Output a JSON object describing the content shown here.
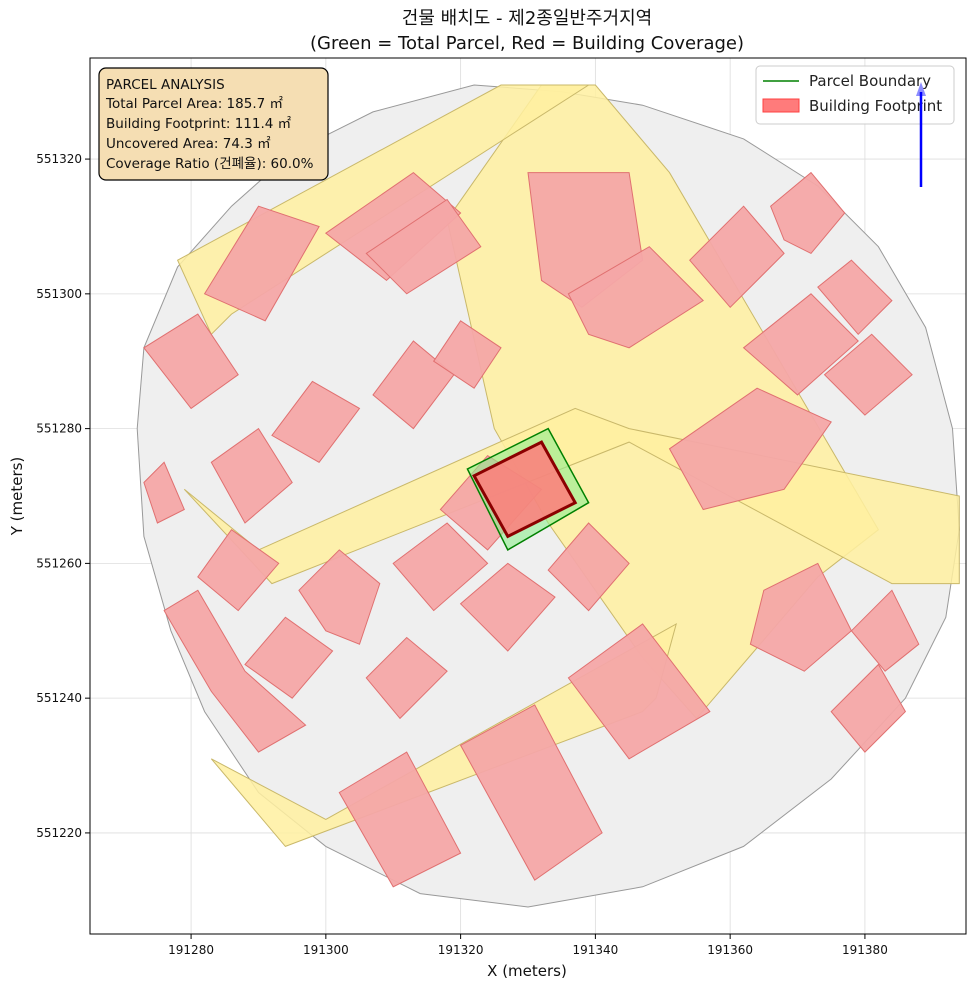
{
  "colors": {
    "parcel_boundary": "#008000",
    "parcel_fill": "#90ee90",
    "building_footprint": "#ff7b7b",
    "building_edge": "#8b0000",
    "road_fill": "#fff0a0",
    "neighbor_parcel_fill": "#efefef",
    "neighbor_building_fill": "#f4a6a6",
    "annotation_box": "#f5deb3",
    "north_arrow": "#0000ff"
  },
  "chart_data": {
    "type": "map",
    "title_line1": "건물 배치도 - 제2종일반주거지역",
    "title_line2": "(Green = Total Parcel, Red = Building Coverage)",
    "xlabel": "X (meters)",
    "ylabel": "Y (meters)",
    "xlim": [
      191265,
      191395
    ],
    "ylim": [
      551205,
      551335
    ],
    "xticks": [
      191280,
      191300,
      191320,
      191340,
      191360,
      191380
    ],
    "yticks": [
      551220,
      551240,
      551260,
      551280,
      551300,
      551320
    ],
    "grid": true,
    "legend_position": "top-right",
    "legend": [
      {
        "label": "Parcel Boundary",
        "kind": "line"
      },
      {
        "label": "Building Footprint",
        "kind": "patch"
      }
    ],
    "annotation": {
      "position": "top-left",
      "lines": [
        "PARCEL ANALYSIS",
        "Total Parcel Area: 185.7 ㎡",
        "Building Footprint: 111.4 ㎡",
        "Uncovered Area: 74.3 ㎡",
        "Coverage Ratio (건폐율): 60.0%"
      ]
    },
    "metrics": {
      "total_parcel_area_m2": 185.7,
      "building_footprint_m2": 111.4,
      "uncovered_area_m2": 74.3,
      "coverage_ratio_percent": 60.0
    },
    "subject_parcel": [
      [
        191321,
        551274
      ],
      [
        191333,
        551280
      ],
      [
        191339,
        551269
      ],
      [
        191327,
        551262
      ]
    ],
    "subject_building": [
      [
        191322,
        551273
      ],
      [
        191332,
        551278
      ],
      [
        191337,
        551269
      ],
      [
        191327,
        551264
      ]
    ],
    "site_boundary": [
      [
        191322,
        551331
      ],
      [
        191335,
        551330
      ],
      [
        191347,
        551328
      ],
      [
        191362,
        551323
      ],
      [
        191373,
        551316
      ],
      [
        191382,
        551307
      ],
      [
        191389,
        551295
      ],
      [
        191393,
        551280
      ],
      [
        191394,
        551265
      ],
      [
        191392,
        551252
      ],
      [
        191386,
        551240
      ],
      [
        191375,
        551228
      ],
      [
        191362,
        551218
      ],
      [
        191347,
        551212
      ],
      [
        191330,
        551209
      ],
      [
        191314,
        551211
      ],
      [
        191300,
        551218
      ],
      [
        191290,
        551226
      ],
      [
        191282,
        551238
      ],
      [
        191277,
        551250
      ],
      [
        191273,
        551264
      ],
      [
        191272,
        551280
      ],
      [
        191273,
        551292
      ],
      [
        191278,
        551304
      ],
      [
        191286,
        551313
      ],
      [
        191295,
        551321
      ],
      [
        191307,
        551327
      ]
    ],
    "roads": [
      [
        [
          191318,
          551311
        ],
        [
          191332,
          551331
        ],
        [
          191340,
          551331
        ],
        [
          191351,
          551318
        ],
        [
          191382,
          551265
        ],
        [
          191373,
          551258
        ],
        [
          191355,
          551237
        ],
        [
          191347,
          551246
        ],
        [
          191333,
          551266
        ],
        [
          191325,
          551280
        ]
      ],
      [
        [
          191278,
          551305
        ],
        [
          191326,
          551331
        ],
        [
          191339,
          551331
        ],
        [
          191286,
          551297
        ],
        [
          191283,
          551294
        ]
      ],
      [
        [
          191279,
          551271
        ],
        [
          191290,
          551262
        ],
        [
          191337,
          551283
        ],
        [
          191345,
          551280
        ],
        [
          191394,
          551270
        ],
        [
          191394,
          551257
        ],
        [
          191384,
          551257
        ],
        [
          191345,
          551278
        ],
        [
          191292,
          551257
        ]
      ],
      [
        [
          191283,
          551231
        ],
        [
          191300,
          551222
        ],
        [
          191352,
          551251
        ],
        [
          191349,
          551240
        ],
        [
          191347,
          551238
        ],
        [
          191294,
          551218
        ]
      ]
    ],
    "neighbor_buildings": [
      [
        [
          191330,
          551318
        ],
        [
          191345,
          551318
        ],
        [
          191347,
          551305
        ],
        [
          191338,
          551298
        ],
        [
          191332,
          551302
        ]
      ],
      [
        [
          191354,
          551305
        ],
        [
          191362,
          551313
        ],
        [
          191368,
          551306
        ],
        [
          191360,
          551298
        ]
      ],
      [
        [
          191366,
          551313
        ],
        [
          191372,
          551318
        ],
        [
          191377,
          551312
        ],
        [
          191372,
          551306
        ],
        [
          191368,
          551308
        ]
      ],
      [
        [
          191373,
          551301
        ],
        [
          191378,
          551305
        ],
        [
          191384,
          551299
        ],
        [
          191379,
          551294
        ]
      ],
      [
        [
          191336,
          551300
        ],
        [
          191348,
          551307
        ],
        [
          191356,
          551299
        ],
        [
          191345,
          551292
        ],
        [
          191339,
          551294
        ]
      ],
      [
        [
          191362,
          551292
        ],
        [
          191372,
          551300
        ],
        [
          191379,
          551293
        ],
        [
          191370,
          551285
        ]
      ],
      [
        [
          191374,
          551288
        ],
        [
          191381,
          551294
        ],
        [
          191387,
          551288
        ],
        [
          191380,
          551282
        ]
      ],
      [
        [
          191351,
          551277
        ],
        [
          191364,
          551286
        ],
        [
          191375,
          551281
        ],
        [
          191368,
          551271
        ],
        [
          191356,
          551268
        ]
      ],
      [
        [
          191365,
          551256
        ],
        [
          191373,
          551260
        ],
        [
          191378,
          551250
        ],
        [
          191371,
          551244
        ],
        [
          191363,
          551248
        ]
      ],
      [
        [
          191378,
          551250
        ],
        [
          191384,
          551256
        ],
        [
          191388,
          551248
        ],
        [
          191383,
          551244
        ]
      ],
      [
        [
          191375,
          551238
        ],
        [
          191382,
          551245
        ],
        [
          191386,
          551238
        ],
        [
          191380,
          551232
        ]
      ],
      [
        [
          191282,
          551300
        ],
        [
          191290,
          551313
        ],
        [
          191299,
          551310
        ],
        [
          191291,
          551296
        ]
      ],
      [
        [
          191300,
          551309
        ],
        [
          191313,
          551318
        ],
        [
          191320,
          551312
        ],
        [
          191309,
          551302
        ]
      ],
      [
        [
          191306,
          551306
        ],
        [
          191318,
          551314
        ],
        [
          191323,
          551307
        ],
        [
          191312,
          551300
        ]
      ],
      [
        [
          191273,
          551292
        ],
        [
          191280,
          551283
        ],
        [
          191287,
          551288
        ],
        [
          191281,
          551297
        ]
      ],
      [
        [
          191292,
          551279
        ],
        [
          191298,
          551287
        ],
        [
          191305,
          551283
        ],
        [
          191299,
          551275
        ]
      ],
      [
        [
          191307,
          551285
        ],
        [
          191313,
          551293
        ],
        [
          191319,
          551288
        ],
        [
          191313,
          551280
        ]
      ],
      [
        [
          191316,
          551290
        ],
        [
          191320,
          551296
        ],
        [
          191326,
          551292
        ],
        [
          191322,
          551286
        ]
      ],
      [
        [
          191283,
          551275
        ],
        [
          191290,
          551280
        ],
        [
          191295,
          551272
        ],
        [
          191288,
          551266
        ]
      ],
      [
        [
          191281,
          551258
        ],
        [
          191286,
          551265
        ],
        [
          191293,
          551260
        ],
        [
          191287,
          551253
        ]
      ],
      [
        [
          191288,
          551245
        ],
        [
          191294,
          551252
        ],
        [
          191301,
          551247
        ],
        [
          191295,
          551240
        ]
      ],
      [
        [
          191296,
          551256
        ],
        [
          191302,
          551262
        ],
        [
          191308,
          551257
        ],
        [
          191305,
          551248
        ],
        [
          191300,
          551250
        ]
      ],
      [
        [
          191306,
          551243
        ],
        [
          191312,
          551249
        ],
        [
          191318,
          551244
        ],
        [
          191311,
          551237
        ]
      ],
      [
        [
          191317,
          551268
        ],
        [
          191324,
          551276
        ],
        [
          191332,
          551271
        ],
        [
          191324,
          551262
        ]
      ],
      [
        [
          191310,
          551260
        ],
        [
          191318,
          551266
        ],
        [
          191324,
          551260
        ],
        [
          191316,
          551253
        ]
      ],
      [
        [
          191320,
          551254
        ],
        [
          191327,
          551260
        ],
        [
          191334,
          551255
        ],
        [
          191327,
          551247
        ]
      ],
      [
        [
          191333,
          551259
        ],
        [
          191339,
          551266
        ],
        [
          191345,
          551260
        ],
        [
          191339,
          551253
        ]
      ],
      [
        [
          191336,
          551243
        ],
        [
          191347,
          551251
        ],
        [
          191357,
          551238
        ],
        [
          191345,
          551231
        ]
      ],
      [
        [
          191320,
          551233
        ],
        [
          191331,
          551239
        ],
        [
          191341,
          551220
        ],
        [
          191331,
          551213
        ]
      ],
      [
        [
          191302,
          551226
        ],
        [
          191312,
          551232
        ],
        [
          191320,
          551217
        ],
        [
          191310,
          551212
        ]
      ],
      [
        [
          191281,
          551256
        ],
        [
          191288,
          551244
        ],
        [
          191297,
          551236
        ],
        [
          191290,
          551232
        ],
        [
          191283,
          551241
        ],
        [
          191276,
          551253
        ]
      ],
      [
        [
          191273,
          551272
        ],
        [
          191276,
          551275
        ],
        [
          191279,
          551268
        ],
        [
          191275,
          551266
        ]
      ]
    ]
  }
}
